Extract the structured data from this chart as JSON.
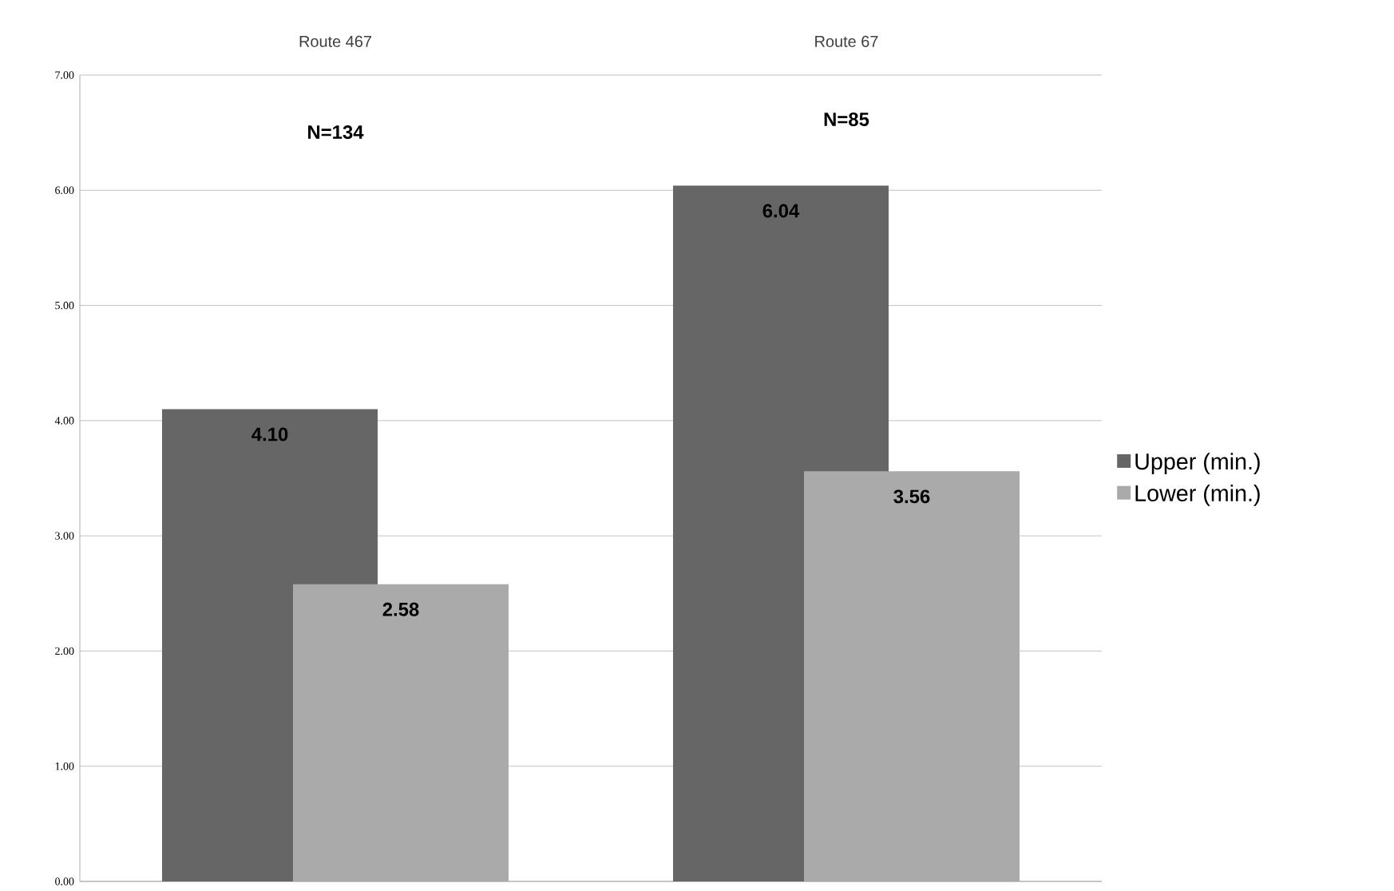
{
  "chart_data": {
    "type": "bar",
    "categories": [
      "Route 467",
      "Route 67"
    ],
    "series": [
      {
        "name": "Upper (min.)",
        "color": "#666666",
        "values": [
          4.1,
          6.04
        ],
        "value_labels": [
          "4.10",
          "6.04"
        ]
      },
      {
        "name": "Lower (min.)",
        "color": "#aaaaaa",
        "values": [
          2.58,
          3.56
        ],
        "value_labels": [
          "2.58",
          "3.56"
        ]
      }
    ],
    "ylim": [
      0,
      7
    ],
    "yticks": [
      {
        "value": 0,
        "label": "0.00"
      },
      {
        "value": 1,
        "label": "1.00"
      },
      {
        "value": 2,
        "label": "2.00"
      },
      {
        "value": 3,
        "label": "3.00"
      },
      {
        "value": 4,
        "label": "4.00"
      },
      {
        "value": 5,
        "label": "5.00"
      },
      {
        "value": 6,
        "label": "6.00"
      },
      {
        "value": 7,
        "label": "7.00"
      }
    ],
    "annotations": [
      "N=134",
      "N=85"
    ],
    "grid": "y",
    "legend": "right"
  }
}
